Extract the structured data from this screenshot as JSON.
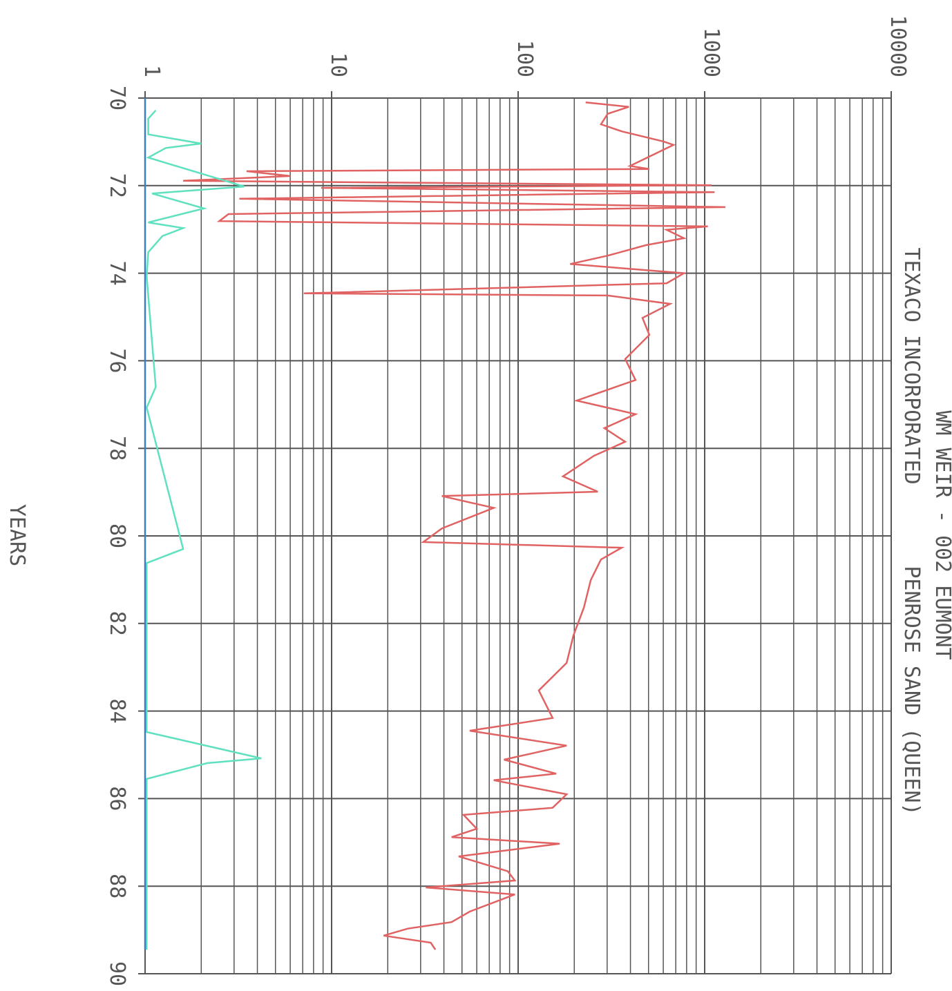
{
  "chart_data": {
    "type": "line",
    "title": "WM WEIR - 002 EUMONT",
    "subtitle": [
      "TEXACO INCORPORATED",
      "PENROSE SAND (QUEEN)"
    ],
    "x_label": "YEARS",
    "orientation": "rotated",
    "log_y": true,
    "grid": true,
    "minor_grid": true,
    "grid_color": "#555555",
    "xlim": [
      70,
      90
    ],
    "xticks": [
      70,
      72,
      74,
      76,
      78,
      80,
      82,
      84,
      86,
      88,
      90
    ],
    "ylim": [
      1,
      10000
    ],
    "yticks": [
      1,
      10,
      100,
      1000,
      10000
    ],
    "series": [
      {
        "color": "#e06262",
        "x": [
          70.1,
          70.2,
          70.36,
          70.6,
          70.76,
          70.99,
          71.07,
          71.55,
          71.62,
          71.67,
          71.78,
          71.89,
          71.99,
          72.05,
          72.15,
          72.3,
          72.49,
          72.65,
          72.81,
          72.93,
          73.01,
          73.2,
          73.36,
          73.6,
          73.79,
          74.0,
          74.23,
          74.46,
          74.51,
          74.7,
          75.02,
          75.41,
          75.96,
          76.44,
          76.91,
          77.22,
          77.54,
          77.85,
          78.17,
          78.64,
          78.99,
          79.09,
          79.36,
          79.83,
          80.14,
          80.27,
          80.54,
          81.01,
          81.64,
          82.27,
          82.9,
          83.53,
          84.16,
          84.45,
          84.79,
          85.11,
          85.43,
          85.58,
          85.9,
          86.21,
          86.37,
          86.69,
          86.88,
          87.03,
          87.32,
          87.66,
          87.87,
          88.03,
          88.19,
          88.58,
          88.82,
          88.97,
          89.13,
          89.29,
          89.45
        ],
        "values": [
          230,
          392,
          302,
          278,
          359,
          600,
          681,
          398,
          505,
          3.5,
          6.0,
          1.6,
          1089,
          8.8,
          1130,
          3.2,
          1290,
          2.8,
          2.5,
          1040,
          625,
          774,
          484,
          302,
          190,
          774,
          625,
          7.1,
          302,
          653,
          464,
          505,
          375,
          426,
          206,
          426,
          290,
          375,
          255,
          174,
          267,
          39,
          74,
          39,
          31,
          359,
          278,
          245,
          225,
          198,
          182,
          129,
          153,
          55,
          182,
          84,
          160,
          74,
          182,
          153,
          51,
          60,
          44,
          167,
          48,
          88,
          96,
          32,
          96,
          55,
          44,
          25.6,
          19,
          34,
          36
        ]
      },
      {
        "color": "#5fe0bf",
        "x": [
          70.28,
          70.47,
          70.83,
          71.04,
          71.14,
          71.36,
          72.02,
          72.18,
          72.52,
          72.84,
          72.97,
          73.15,
          73.52,
          74.07,
          76.6,
          77.07,
          80.3,
          80.62,
          84.48,
          85.08,
          85.19,
          85.55,
          89.45
        ],
        "values": [
          1.14,
          1.04,
          1.04,
          2.0,
          1.29,
          1.04,
          3.4,
          1.09,
          2.07,
          1.04,
          1.6,
          1.24,
          1.04,
          1.02,
          1.14,
          1.02,
          1.6,
          1.02,
          1.02,
          4.2,
          2.15,
          1.02,
          1.02
        ]
      },
      {
        "color": "#3a7fc0",
        "x": [
          70,
          89.45
        ],
        "values": [
          1,
          1
        ]
      }
    ]
  }
}
